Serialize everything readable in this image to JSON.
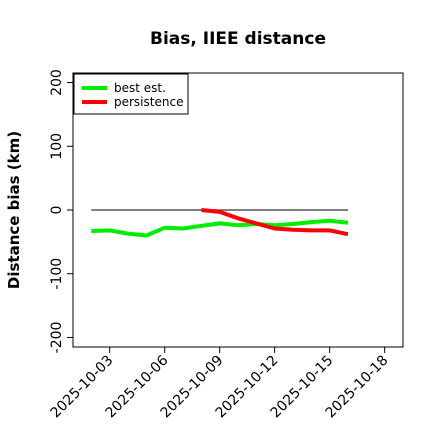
{
  "chart_data": {
    "type": "line",
    "title": "Bias, IIEE distance",
    "xlabel": "",
    "ylabel": "Distance bias (km)",
    "xlim": [
      "2025-10-01",
      "2025-10-19"
    ],
    "ylim": [
      -215,
      215
    ],
    "x_ticks": [
      "2025-10-03",
      "2025-10-06",
      "2025-10-09",
      "2025-10-12",
      "2025-10-15",
      "2025-10-18"
    ],
    "y_ticks": [
      -200,
      -100,
      0,
      100,
      200
    ],
    "legend_position": "top-left",
    "grid": false,
    "reference_line": {
      "y": 0,
      "from": "2025-10-02",
      "to": "2025-10-16",
      "color": "#555555"
    },
    "series": [
      {
        "name": "best est.",
        "color": "#00ee00",
        "x": [
          "2025-10-02",
          "2025-10-03",
          "2025-10-04",
          "2025-10-05",
          "2025-10-06",
          "2025-10-07",
          "2025-10-08",
          "2025-10-09",
          "2025-10-10",
          "2025-10-11",
          "2025-10-12",
          "2025-10-13",
          "2025-10-14",
          "2025-10-15",
          "2025-10-16"
        ],
        "values": [
          -33,
          -32,
          -37,
          -40,
          -28,
          -29,
          -25,
          -21,
          -24,
          -22,
          -24,
          -22,
          -19,
          -17,
          -20
        ]
      },
      {
        "name": "persistence",
        "color": "#ff0000",
        "x": [
          "2025-10-08",
          "2025-10-09",
          "2025-10-10",
          "2025-10-11",
          "2025-10-12",
          "2025-10-13",
          "2025-10-14",
          "2025-10-15",
          "2025-10-16"
        ],
        "values": [
          0,
          -3,
          -13,
          -21,
          -29,
          -31,
          -32,
          -32,
          -38
        ]
      }
    ]
  }
}
